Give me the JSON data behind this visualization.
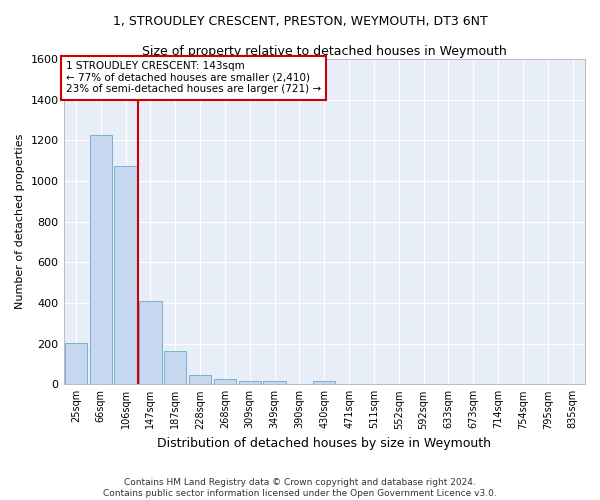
{
  "title": "1, STROUDLEY CRESCENT, PRESTON, WEYMOUTH, DT3 6NT",
  "subtitle": "Size of property relative to detached houses in Weymouth",
  "xlabel": "Distribution of detached houses by size in Weymouth",
  "ylabel": "Number of detached properties",
  "bar_color": "#c5d8f0",
  "bar_edge_color": "#7aafd4",
  "background_color": "#e8eef8",
  "grid_color": "#ffffff",
  "categories": [
    "25sqm",
    "66sqm",
    "106sqm",
    "147sqm",
    "187sqm",
    "228sqm",
    "268sqm",
    "309sqm",
    "349sqm",
    "390sqm",
    "430sqm",
    "471sqm",
    "511sqm",
    "552sqm",
    "592sqm",
    "633sqm",
    "673sqm",
    "714sqm",
    "754sqm",
    "795sqm",
    "835sqm"
  ],
  "values": [
    205,
    1225,
    1075,
    410,
    165,
    45,
    27,
    17,
    14,
    0,
    14,
    0,
    0,
    0,
    0,
    0,
    0,
    0,
    0,
    0,
    0
  ],
  "ylim": [
    0,
    1600
  ],
  "yticks": [
    0,
    200,
    400,
    600,
    800,
    1000,
    1200,
    1400,
    1600
  ],
  "property_line_x": 2.5,
  "annotation_text": "1 STROUDLEY CRESCENT: 143sqm\n← 77% of detached houses are smaller (2,410)\n23% of semi-detached houses are larger (721) →",
  "annotation_box_color": "#ffffff",
  "annotation_box_edge": "#cc0000",
  "line_color": "#cc0000",
  "footer": "Contains HM Land Registry data © Crown copyright and database right 2024.\nContains public sector information licensed under the Open Government Licence v3.0."
}
